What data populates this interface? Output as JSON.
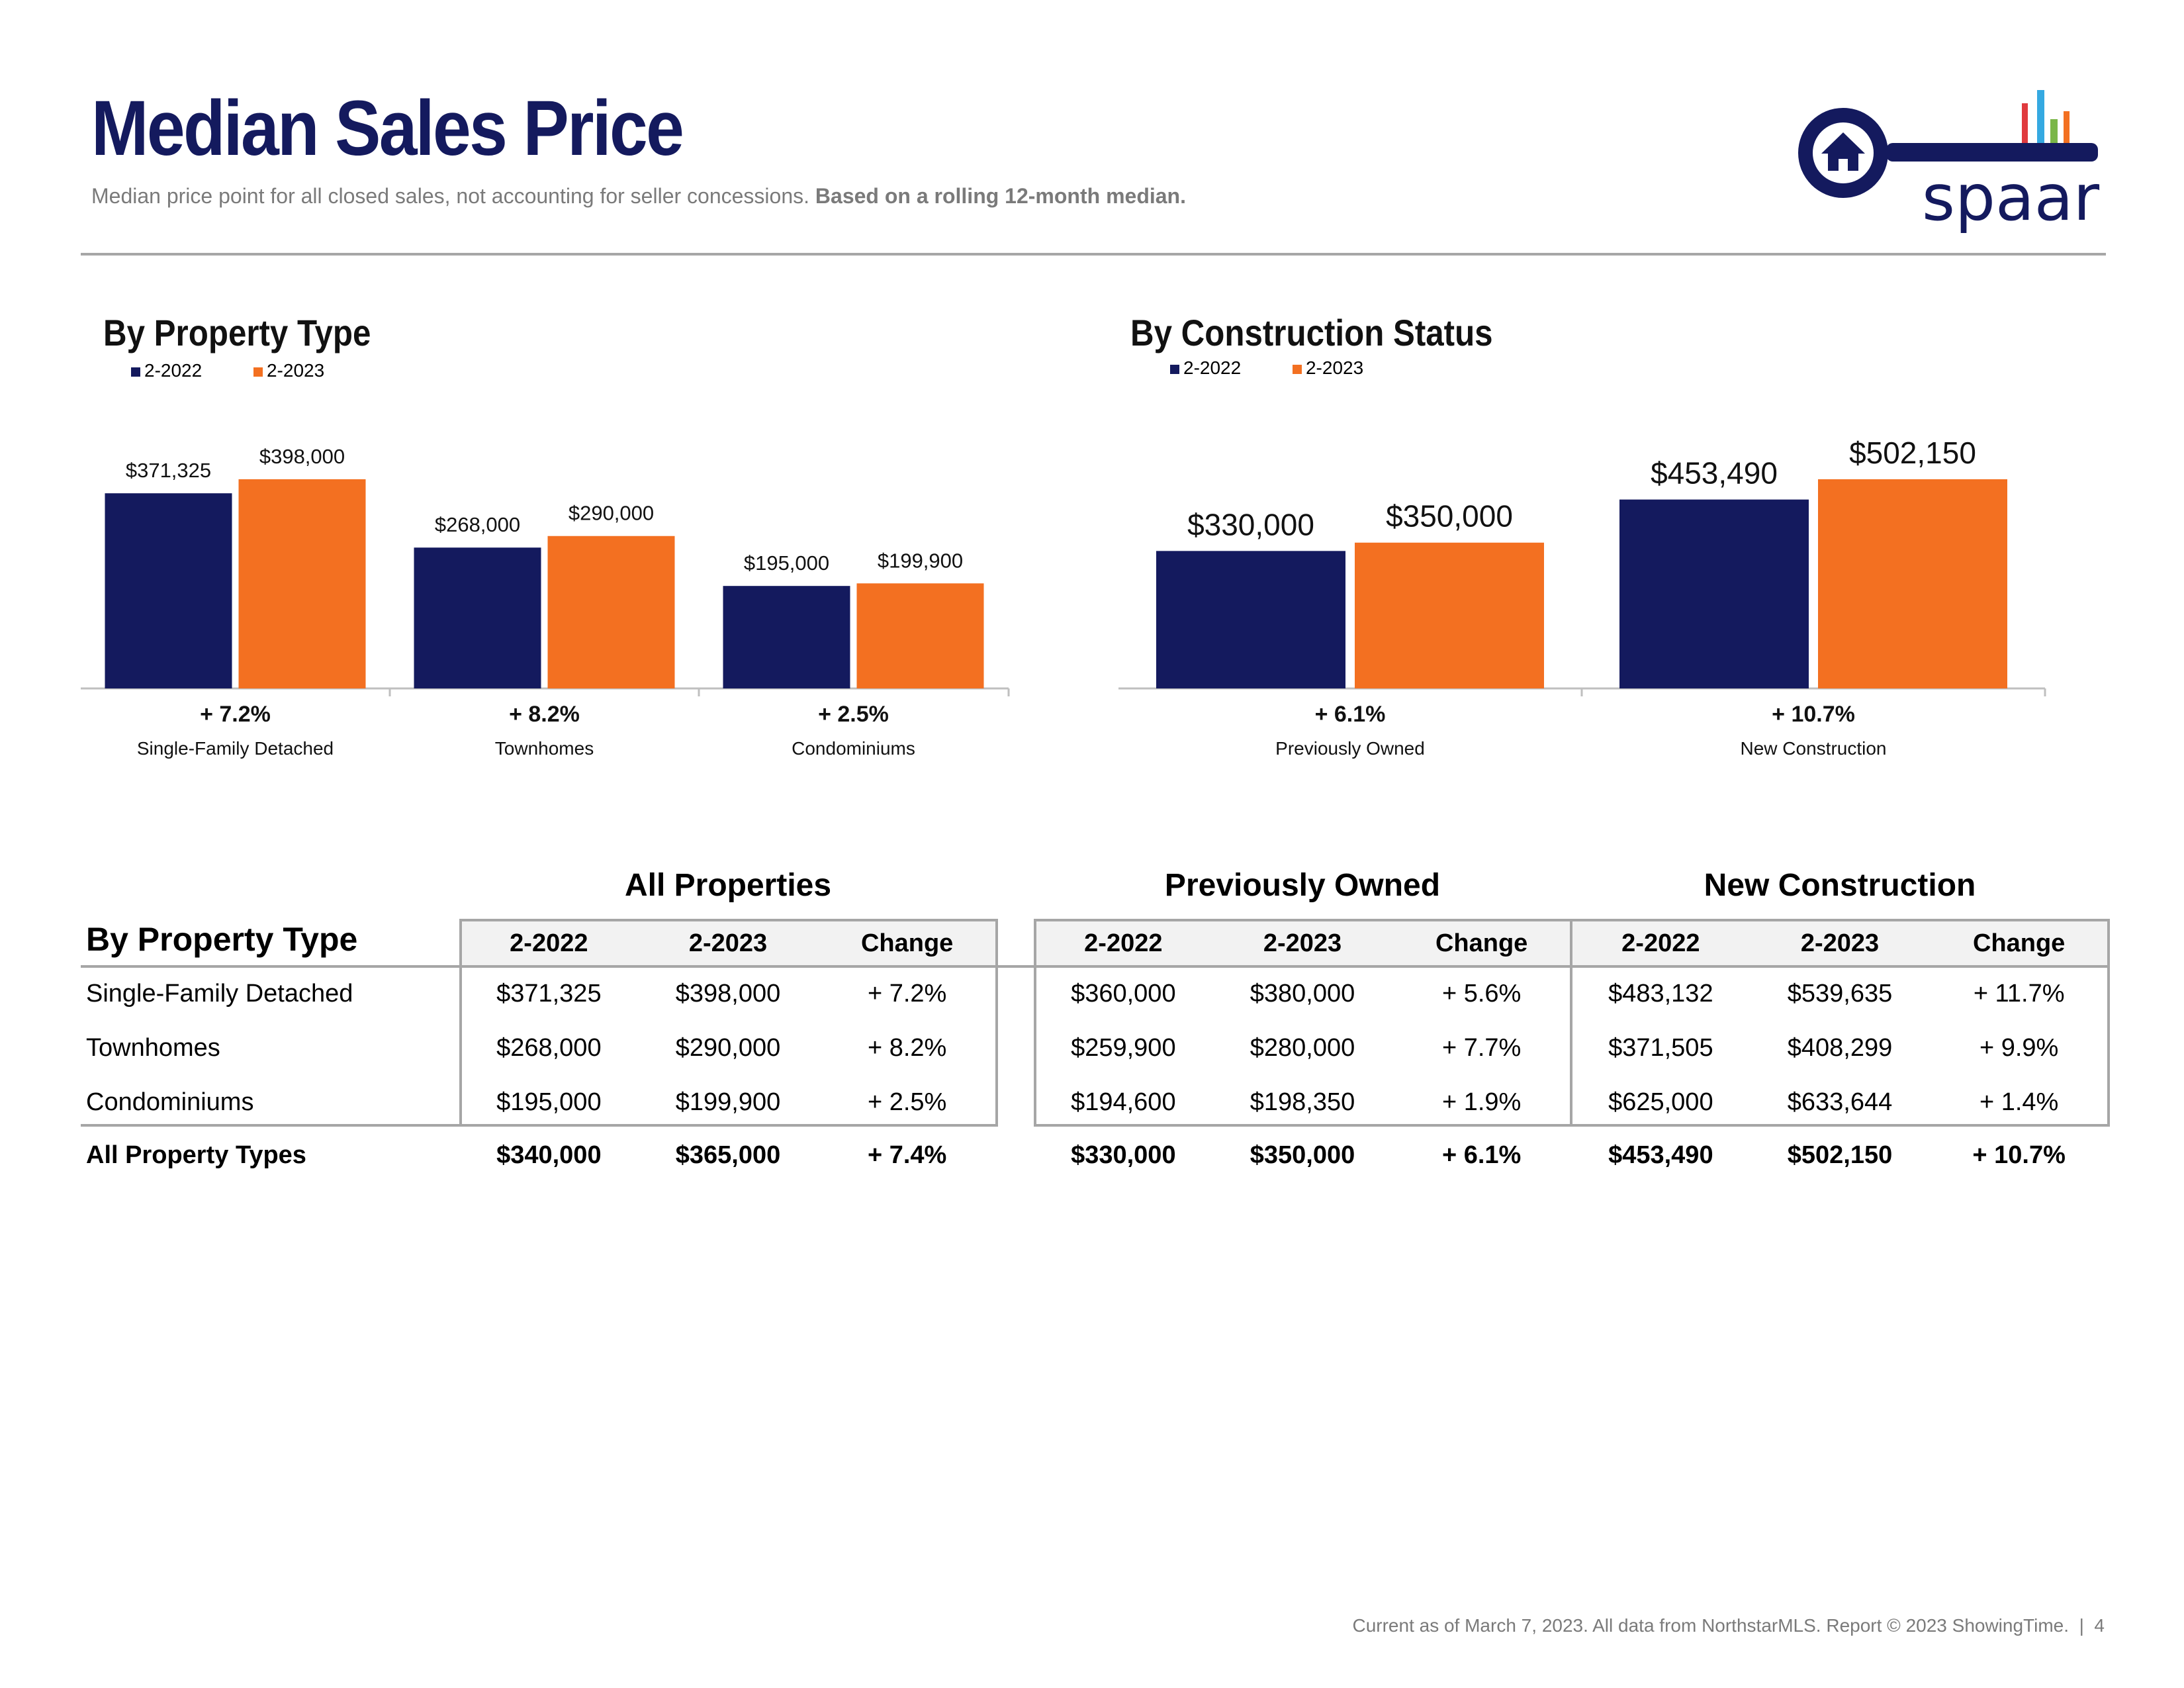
{
  "header": {
    "title": "Median Sales Price",
    "subtitle_regular": "Median price point for all closed sales, not accounting for seller concessions.",
    "subtitle_bold": "Based on a rolling 12-month median.",
    "logo_text": "spaar"
  },
  "colors": {
    "navy": "#141a5e",
    "orange": "#f37021",
    "grid": "#bfbfbf"
  },
  "chart_data": [
    {
      "type": "bar",
      "title": "By Property Type",
      "legend": [
        "2-2022",
        "2-2023"
      ],
      "categories": [
        "Single-Family Detached",
        "Townhomes",
        "Condominiums"
      ],
      "series": [
        {
          "name": "2-2022",
          "values": [
            371325,
            268000,
            195000
          ],
          "labels": [
            "$371,325",
            "$268,000",
            "$195,000"
          ]
        },
        {
          "name": "2-2023",
          "values": [
            398000,
            290000,
            199900
          ],
          "labels": [
            "$398,000",
            "$290,000",
            "$199,900"
          ]
        }
      ],
      "changes": [
        "+ 7.2%",
        "+ 8.2%",
        "+ 2.5%"
      ],
      "ylim": [
        0,
        400000
      ]
    },
    {
      "type": "bar",
      "title": "By Construction Status",
      "legend": [
        "2-2022",
        "2-2023"
      ],
      "categories": [
        "Previously Owned",
        "New Construction"
      ],
      "series": [
        {
          "name": "2-2022",
          "values": [
            330000,
            453490
          ],
          "labels": [
            "$330,000",
            "$453,490"
          ]
        },
        {
          "name": "2-2023",
          "values": [
            350000,
            502150
          ],
          "labels": [
            "$350,000",
            "$502,150"
          ]
        }
      ],
      "changes": [
        "+ 6.1%",
        "+ 10.7%"
      ],
      "ylim": [
        0,
        502150
      ]
    }
  ],
  "table": {
    "row_header_title": "By Property Type",
    "groups": [
      {
        "title": "All Properties",
        "columns": [
          "2-2022",
          "2-2023",
          "Change"
        ]
      },
      {
        "title": "Previously Owned",
        "columns": [
          "2-2022",
          "2-2023",
          "Change"
        ]
      },
      {
        "title": "New Construction",
        "columns": [
          "2-2022",
          "2-2023",
          "Change"
        ]
      }
    ],
    "rows": [
      {
        "label": "Single-Family Detached",
        "cells": [
          "$371,325",
          "$398,000",
          "+ 7.2%",
          "$360,000",
          "$380,000",
          "+ 5.6%",
          "$483,132",
          "$539,635",
          "+ 11.7%"
        ]
      },
      {
        "label": "Townhomes",
        "cells": [
          "$268,000",
          "$290,000",
          "+ 8.2%",
          "$259,900",
          "$280,000",
          "+ 7.7%",
          "$371,505",
          "$408,299",
          "+ 9.9%"
        ]
      },
      {
        "label": "Condominiums",
        "cells": [
          "$195,000",
          "$199,900",
          "+ 2.5%",
          "$194,600",
          "$198,350",
          "+ 1.9%",
          "$625,000",
          "$633,644",
          "+ 1.4%"
        ]
      }
    ],
    "total_row": {
      "label": "All Property Types",
      "cells": [
        "$340,000",
        "$365,000",
        "+ 7.4%",
        "$330,000",
        "$350,000",
        "+ 6.1%",
        "$453,490",
        "$502,150",
        "+ 10.7%"
      ]
    }
  },
  "footer": {
    "text": "Current as of March 7, 2023. All data from NorthstarMLS. Report © 2023 ShowingTime.",
    "page_number": "4"
  }
}
